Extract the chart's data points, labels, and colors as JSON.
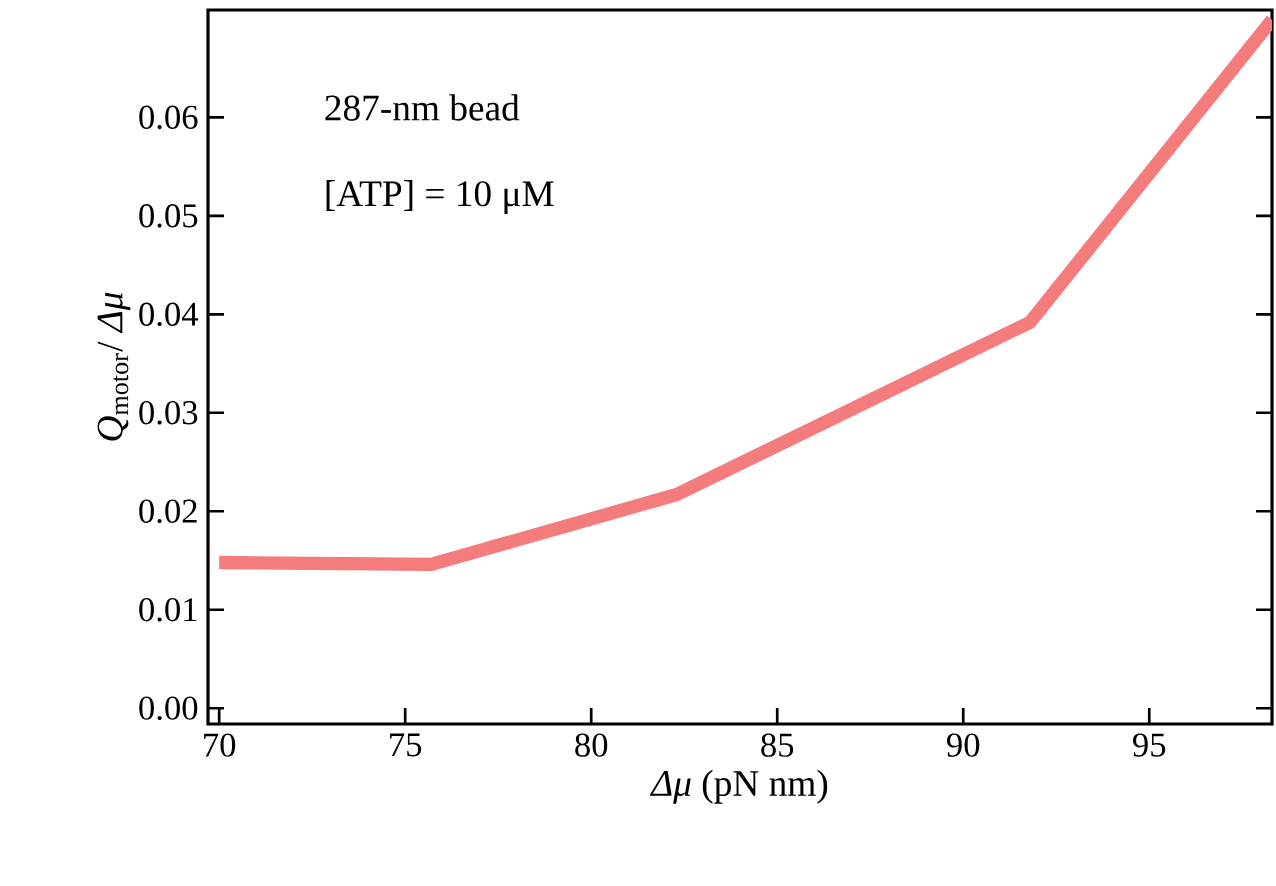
{
  "chart_data": {
    "type": "line",
    "xlabel": "*Δμ*  (pN nm)",
    "ylabel": "*Q*$_{motor}$/ *Δμ*",
    "annotations": [
      "287-nm bead",
      "[ATP] = 10 μM"
    ],
    "x": [
      70,
      75.7,
      82.3,
      91.8,
      98.3
    ],
    "series": [
      {
        "color": "#f47c7c",
        "values": [
          0.0148,
          0.0146,
          0.0217,
          0.0392,
          0.0699
        ]
      }
    ],
    "xlim": [
      69.7,
      98.3
    ],
    "ylim": [
      -0.0016,
      0.0709
    ],
    "xticks": [
      70,
      75,
      80,
      85,
      90,
      95
    ],
    "yticks": [
      {
        "value": 0,
        "label": "0.00"
      },
      0.01,
      0.02,
      0.03,
      0.04,
      0.05,
      0.06
    ],
    "grid": false,
    "marker": "none",
    "line_style": "solid"
  }
}
